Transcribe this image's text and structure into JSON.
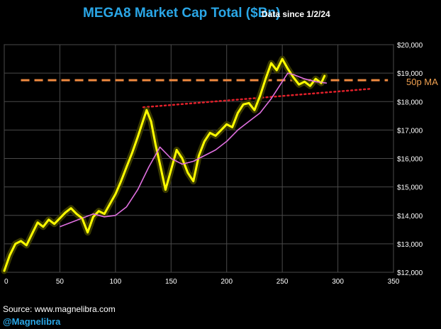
{
  "chart_data": {
    "type": "line",
    "title": "MEGA8 Market Cap Total ($Bn)",
    "subtitle": "Data since 1/2/24",
    "xlabel": "",
    "ylabel": "",
    "xlim": [
      0,
      350
    ],
    "ylim": [
      12000,
      20000
    ],
    "x_ticks": [
      "0",
      "50",
      "100",
      "150",
      "200",
      "250",
      "300",
      "350"
    ],
    "y_ticks": [
      "$12,000",
      "$13,000",
      "$14,000",
      "$15,000",
      "$16,000",
      "$17,000",
      "$18,000",
      "$19,000",
      "$20,000"
    ],
    "grid": true,
    "series": [
      {
        "name": "MEGA8 Market Cap Total",
        "color": "#ffff00",
        "x": [
          0,
          5,
          10,
          15,
          20,
          25,
          30,
          35,
          40,
          45,
          50,
          55,
          60,
          65,
          70,
          75,
          80,
          85,
          90,
          95,
          100,
          105,
          110,
          115,
          120,
          125,
          128,
          132,
          136,
          140,
          145,
          150,
          155,
          160,
          165,
          170,
          175,
          180,
          185,
          190,
          195,
          200,
          205,
          210,
          215,
          220,
          225,
          230,
          235,
          240,
          245,
          250,
          255,
          260,
          265,
          270,
          275,
          280,
          285,
          288
        ],
        "values": [
          12050,
          12600,
          13000,
          13100,
          12950,
          13350,
          13750,
          13600,
          13850,
          13700,
          13900,
          14100,
          14250,
          14050,
          13900,
          13400,
          13950,
          14150,
          14050,
          14400,
          14750,
          15200,
          15700,
          16200,
          16750,
          17350,
          17700,
          17300,
          16500,
          15800,
          14900,
          15600,
          16300,
          16000,
          15500,
          15200,
          16100,
          16600,
          16900,
          16800,
          17000,
          17200,
          17100,
          17600,
          17900,
          17950,
          17700,
          18200,
          18800,
          19350,
          19100,
          19500,
          19150,
          18850,
          18600,
          18700,
          18550,
          18800,
          18650,
          18900
        ]
      },
      {
        "name": "50p MA",
        "color": "#e070e0",
        "x": [
          50,
          60,
          70,
          80,
          90,
          100,
          110,
          120,
          130,
          140,
          150,
          160,
          170,
          180,
          190,
          200,
          210,
          220,
          230,
          240,
          250,
          255,
          260,
          270,
          280,
          290
        ],
        "values": [
          13600,
          13750,
          13900,
          14050,
          13950,
          14000,
          14300,
          14900,
          15700,
          16400,
          16000,
          15800,
          15900,
          16100,
          16300,
          16600,
          17000,
          17300,
          17600,
          18100,
          18700,
          19000,
          18950,
          18800,
          18700,
          18650
        ]
      }
    ],
    "annotations": [
      {
        "type": "hline",
        "name": "50p MA level",
        "label": "50p MA",
        "y": 18750,
        "x_start": 15,
        "x_end": 345,
        "color": "#f08a40",
        "style": "dashed"
      },
      {
        "type": "trendline",
        "name": "support trendline",
        "x_start": 125,
        "y_start": 17800,
        "x_end": 330,
        "y_end": 18450,
        "color": "#e0202a",
        "style": "dotted"
      }
    ]
  },
  "footer": {
    "source": "Source: www.magnelibra.com",
    "handle": "@Magnelibra"
  }
}
